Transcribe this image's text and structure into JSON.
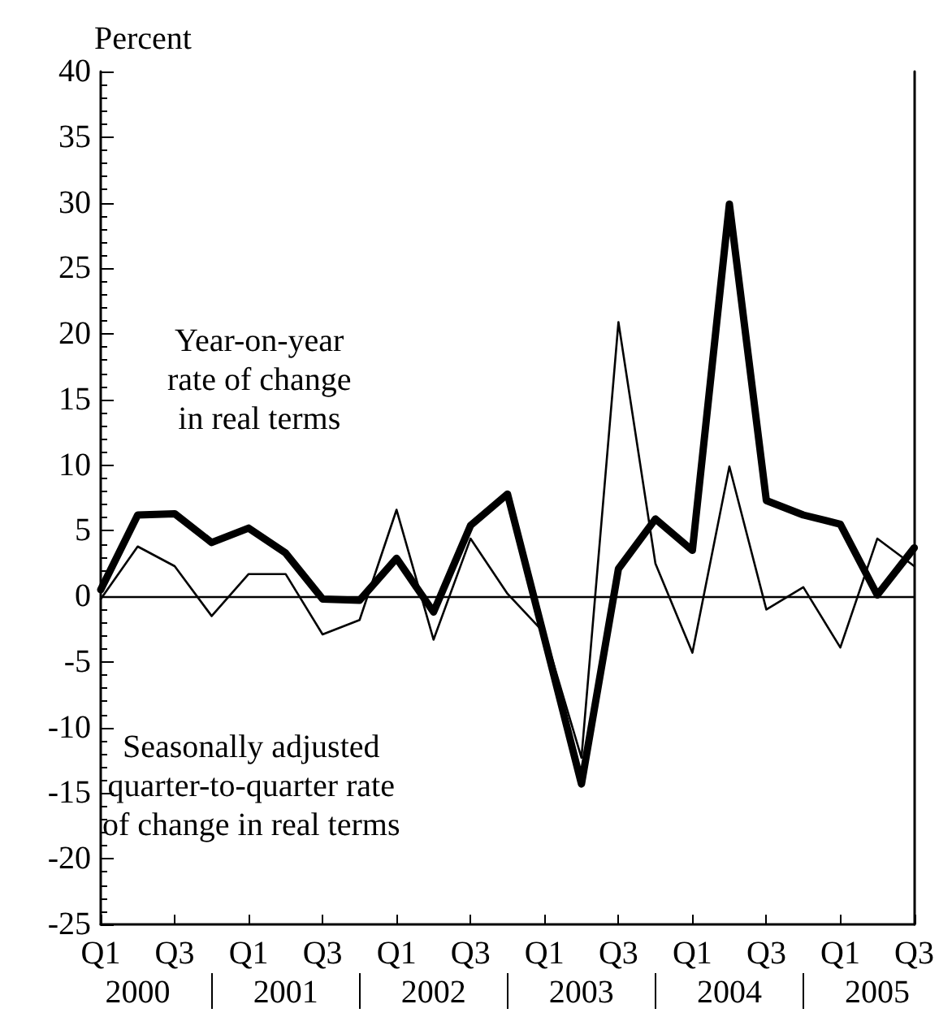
{
  "chart_data": {
    "type": "line",
    "ylabel": "Percent",
    "categories": [
      "Q1",
      null,
      "Q3",
      null,
      "Q1",
      null,
      "Q3",
      null,
      "Q1",
      null,
      "Q3",
      null,
      "Q1",
      null,
      "Q3",
      null,
      "Q1",
      null,
      "Q3",
      null,
      "Q1",
      null,
      "Q3"
    ],
    "series": [
      {
        "color": "#000000",
        "values": [
          0.5,
          6.2,
          6.3,
          4.1,
          5.2,
          3.3,
          -0.2,
          -0.3,
          2.9,
          -1.2,
          5.4,
          7.8,
          -3.2,
          -14.3,
          2.1,
          5.9,
          3.5,
          29.9,
          7.3,
          6.2,
          5.5,
          0.1,
          3.7
        ]
      },
      {
        "color": "#000000",
        "values": [
          -0.2,
          3.8,
          2.3,
          -1.5,
          1.7,
          1.7,
          -2.9,
          -1.8,
          6.6,
          -3.3,
          4.4,
          0.2,
          -2.8,
          -12.3,
          20.9,
          2.5,
          -4.3,
          9.9,
          -1.0,
          0.7,
          -3.9,
          4.4,
          2.3
        ]
      }
    ],
    "ylim": [
      -25,
      40
    ],
    "yticks": [
      -25,
      -20,
      -15,
      -10,
      -5,
      0,
      5,
      10,
      15,
      20,
      25,
      30,
      35,
      40
    ],
    "ref_lines": [
      {
        "axis": "y",
        "value": 0,
        "color": "#000000"
      }
    ],
    "annotations": [
      "Year-on-year\nrate of change\nin real terms",
      "Seasonally adjusted\nquarter-to-quarter rate\nof change in real terms",
      "2000",
      "2001",
      "2002",
      "2003",
      "2004",
      "2005"
    ],
    "grid": false,
    "marker": "none",
    "line_style": "solid"
  }
}
